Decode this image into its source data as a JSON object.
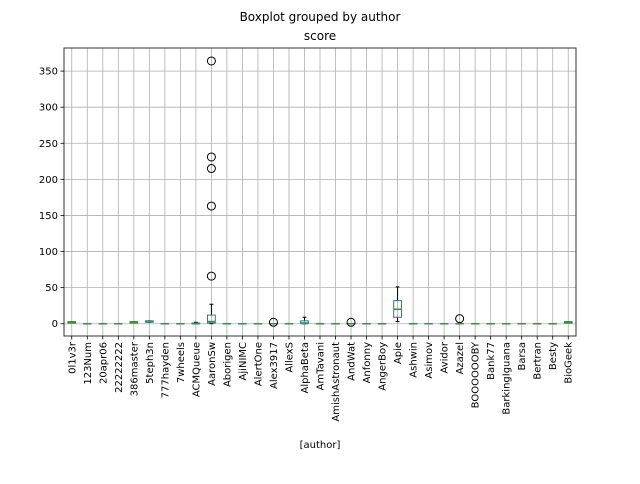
{
  "suptitle": "Boxplot grouped by author",
  "chart_data": {
    "type": "boxplot",
    "title": "score",
    "xlabel": "[author]",
    "ylabel": "",
    "ylim": [
      -17,
      382
    ],
    "yticks": [
      0,
      50,
      100,
      150,
      200,
      250,
      300,
      350
    ],
    "grid": true,
    "colors": {
      "box": "#1f77b4",
      "median": "#2ca02c",
      "whisker": "#000000",
      "flier": "#000000",
      "grid": "#b0b0b0"
    },
    "categories": [
      "0l1v3r",
      "123Num",
      "20apr06",
      "22222222",
      "386master",
      "5teph3n",
      "777hayden",
      "7wheels",
      "ACMQueue",
      "AaronSw",
      "Aborigen",
      "AjiNIMC",
      "AlertOne",
      "Alex3917",
      "AllexS",
      "AlphaBeta",
      "AmTavani",
      "AmishAstronaut",
      "AndWat",
      "Anfonny",
      "AngerBoy",
      "Apie",
      "Ashwin",
      "Asimov",
      "Avidor",
      "Azazel",
      "BOOOOOOBY",
      "Bank77",
      "BarkingIguana",
      "Barsa",
      "Bertran",
      "Besty",
      "BioGeek"
    ],
    "boxes": [
      {
        "q1": 1,
        "median": 2,
        "q3": 3,
        "whislo": 1,
        "whishi": 3,
        "fliers": []
      },
      {
        "q1": 0,
        "median": 0,
        "q3": 0,
        "whislo": 0,
        "whishi": 0,
        "fliers": []
      },
      {
        "q1": 0,
        "median": 0,
        "q3": 0,
        "whislo": 0,
        "whishi": 0,
        "fliers": []
      },
      {
        "q1": 0,
        "median": 0,
        "q3": 0,
        "whislo": 0,
        "whishi": 0,
        "fliers": []
      },
      {
        "q1": 1,
        "median": 2,
        "q3": 3,
        "whislo": 1,
        "whishi": 3,
        "fliers": []
      },
      {
        "q1": 2,
        "median": 3,
        "q3": 4,
        "whislo": 2,
        "whishi": 4,
        "fliers": []
      },
      {
        "q1": 0,
        "median": 0,
        "q3": 0,
        "whislo": 0,
        "whishi": 0,
        "fliers": []
      },
      {
        "q1": 0,
        "median": 0,
        "q3": 0,
        "whislo": 0,
        "whishi": 0,
        "fliers": []
      },
      {
        "q1": 0,
        "median": 0,
        "q3": 1,
        "whislo": 0,
        "whishi": 2,
        "fliers": []
      },
      {
        "q1": 1,
        "median": 3,
        "q3": 12,
        "whislo": 0,
        "whishi": 27,
        "fliers": [
          66,
          163,
          215,
          231,
          364
        ]
      },
      {
        "q1": 0,
        "median": 0,
        "q3": 0,
        "whislo": 0,
        "whishi": 0,
        "fliers": []
      },
      {
        "q1": 0,
        "median": 0,
        "q3": 0,
        "whislo": 0,
        "whishi": 0,
        "fliers": []
      },
      {
        "q1": 0,
        "median": 0,
        "q3": 0,
        "whislo": 0,
        "whishi": 0,
        "fliers": []
      },
      {
        "q1": 0,
        "median": 0,
        "q3": 0,
        "whislo": 0,
        "whishi": 0,
        "fliers": [
          2
        ]
      },
      {
        "q1": 0,
        "median": 0,
        "q3": 0,
        "whislo": 0,
        "whishi": 0,
        "fliers": []
      },
      {
        "q1": 0,
        "median": 1,
        "q3": 4,
        "whislo": 0,
        "whishi": 9,
        "fliers": []
      },
      {
        "q1": 0,
        "median": 0,
        "q3": 0,
        "whislo": 0,
        "whishi": 0,
        "fliers": []
      },
      {
        "q1": 0,
        "median": 0,
        "q3": 0,
        "whislo": 0,
        "whishi": 0,
        "fliers": []
      },
      {
        "q1": 0,
        "median": 0,
        "q3": 0,
        "whislo": 0,
        "whishi": 0,
        "fliers": [
          2
        ]
      },
      {
        "q1": 0,
        "median": 0,
        "q3": 0,
        "whislo": 0,
        "whishi": 0,
        "fliers": []
      },
      {
        "q1": 0,
        "median": 0,
        "q3": 0,
        "whislo": 0,
        "whishi": 0,
        "fliers": []
      },
      {
        "q1": 9,
        "median": 20,
        "q3": 32,
        "whislo": 3,
        "whishi": 51,
        "fliers": []
      },
      {
        "q1": 0,
        "median": 0,
        "q3": 0,
        "whislo": 0,
        "whishi": 0,
        "fliers": []
      },
      {
        "q1": 0,
        "median": 0,
        "q3": 0,
        "whislo": 0,
        "whishi": 0,
        "fliers": []
      },
      {
        "q1": 0,
        "median": 0,
        "q3": 0,
        "whislo": 0,
        "whishi": 0,
        "fliers": []
      },
      {
        "q1": 0,
        "median": 0,
        "q3": 0,
        "whislo": 0,
        "whishi": 0,
        "fliers": [
          7
        ]
      },
      {
        "q1": 0,
        "median": 0,
        "q3": 0,
        "whislo": 0,
        "whishi": 0,
        "fliers": []
      },
      {
        "q1": 0,
        "median": 0,
        "q3": 0,
        "whislo": 0,
        "whishi": 0,
        "fliers": []
      },
      {
        "q1": 0,
        "median": 0,
        "q3": 0,
        "whislo": 0,
        "whishi": 0,
        "fliers": []
      },
      {
        "q1": 0,
        "median": 0,
        "q3": 0,
        "whislo": 0,
        "whishi": 0,
        "fliers": []
      },
      {
        "q1": 0,
        "median": 0,
        "q3": 0,
        "whislo": 0,
        "whishi": 0,
        "fliers": []
      },
      {
        "q1": 0,
        "median": 0,
        "q3": 0,
        "whislo": 0,
        "whishi": 0,
        "fliers": []
      },
      {
        "q1": 1,
        "median": 2,
        "q3": 3,
        "whislo": 1,
        "whishi": 3,
        "fliers": []
      }
    ]
  }
}
